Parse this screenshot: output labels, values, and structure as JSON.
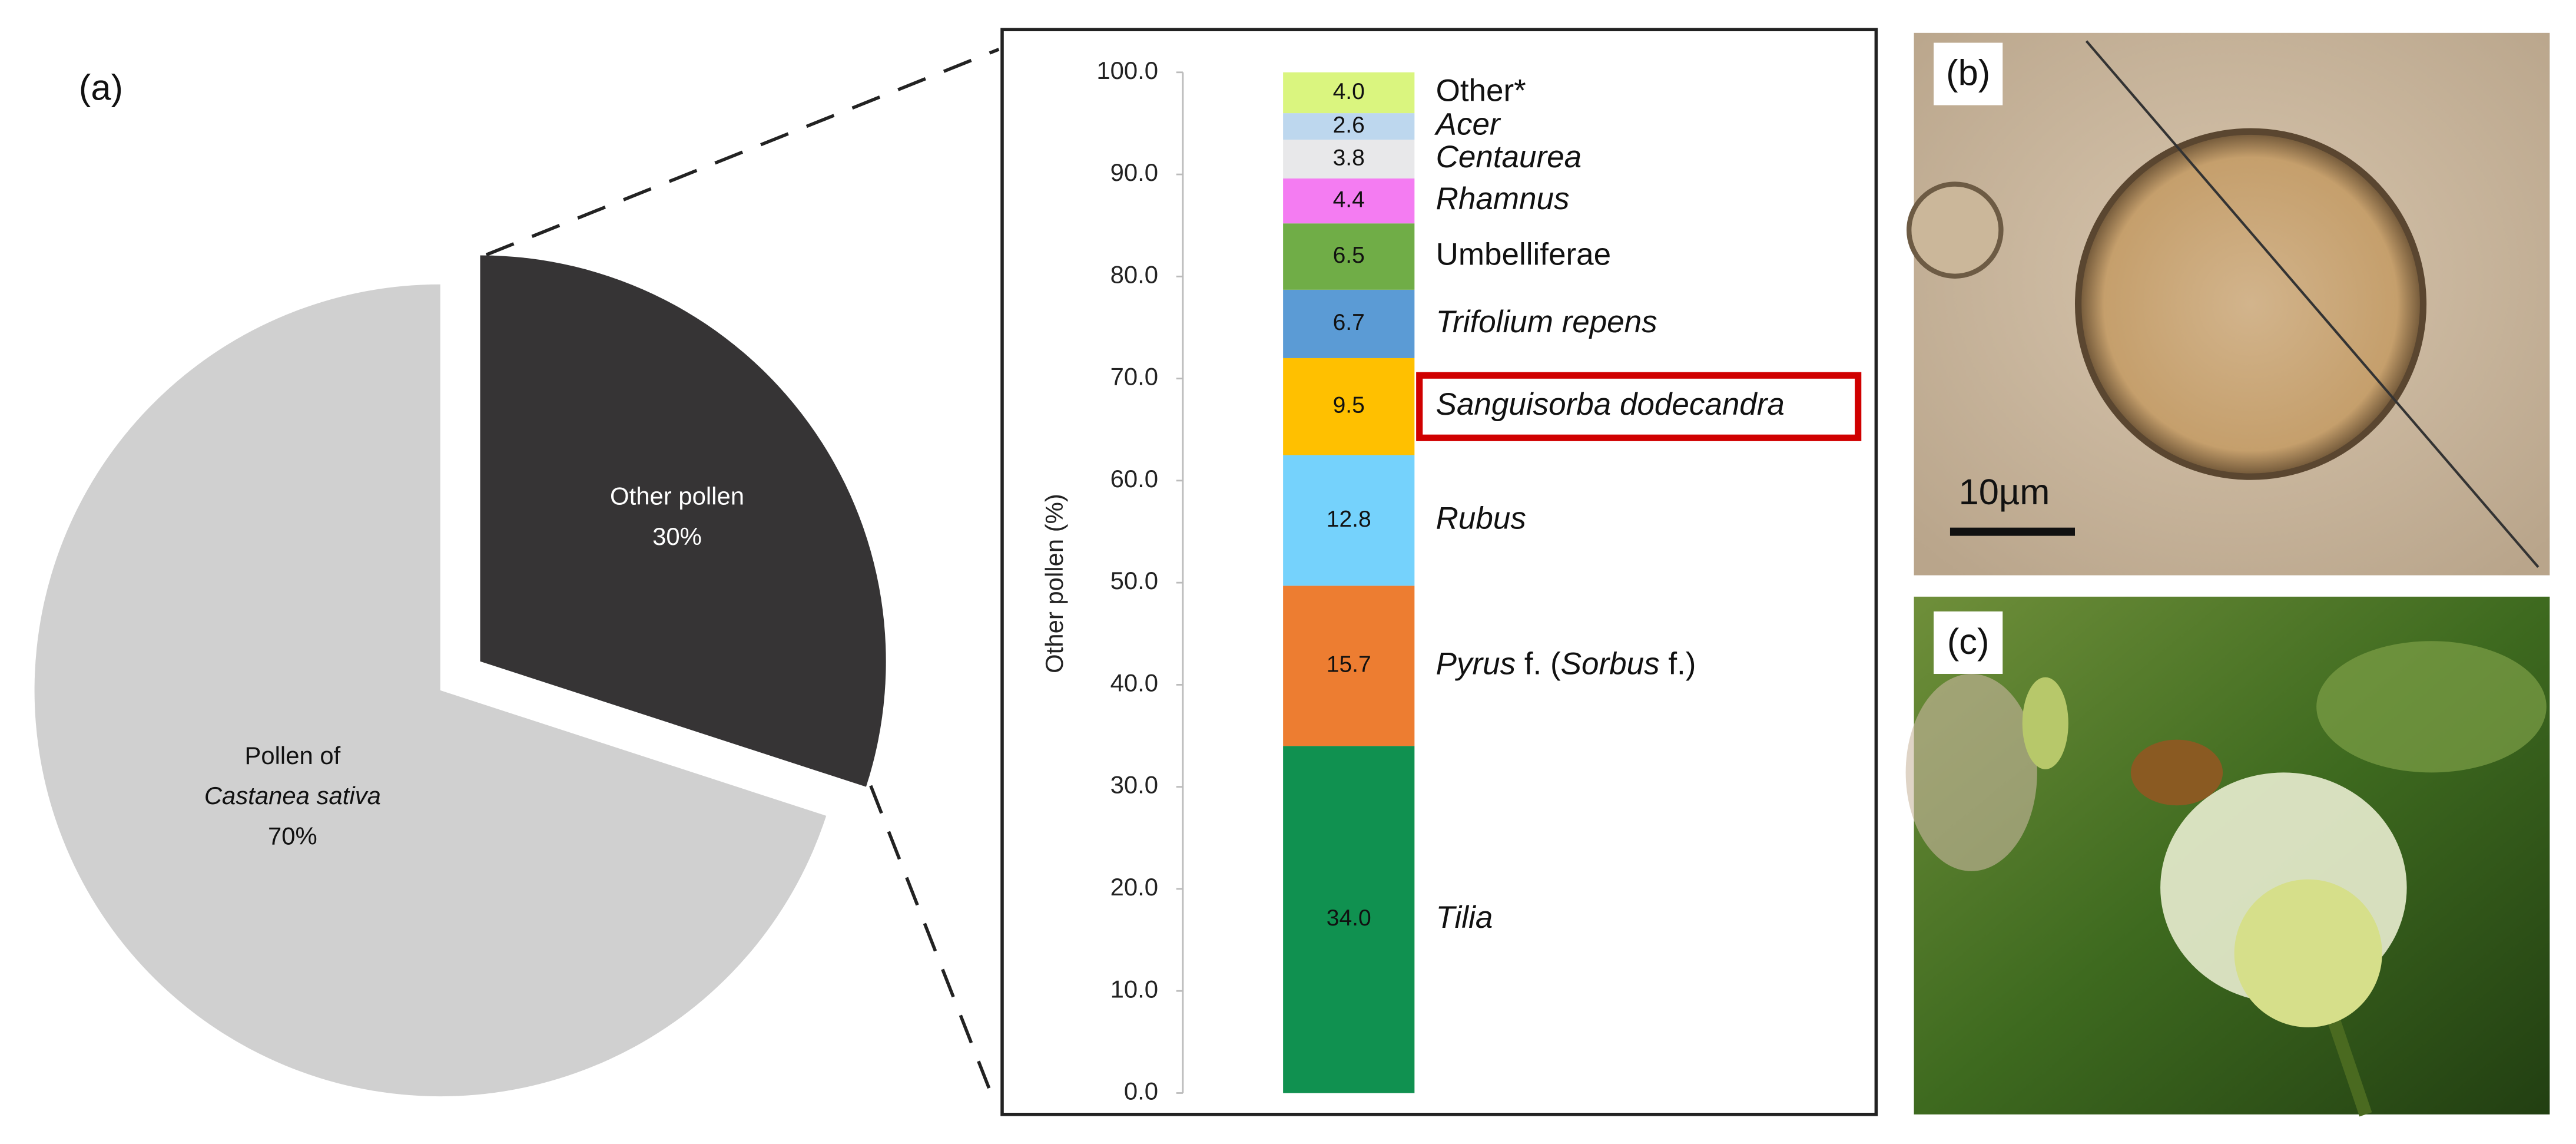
{
  "panel_label": "(a)",
  "chart_data": [
    {
      "type": "pie",
      "categories": [
        {
          "lines": [
            "Other pollen"
          ],
          "italic": [
            false
          ]
        },
        {
          "lines": [
            "Pollen of",
            "Castanea sativa"
          ],
          "italic": [
            false,
            true
          ]
        }
      ],
      "values": [
        30,
        70
      ],
      "value_labels": [
        "30%",
        "70%"
      ],
      "colors": [
        "#363435",
        "#d0d0d0"
      ],
      "label_colors": [
        "#ffffff",
        "#111111"
      ]
    },
    {
      "type": "stacked-bar",
      "ylabel": "Other pollen (%)",
      "ylim": [
        0,
        100
      ],
      "yticks": [
        {
          "value": 0,
          "label": "0.0"
        },
        {
          "value": 10,
          "label": "10.0"
        },
        {
          "value": 20,
          "label": "20.0"
        },
        {
          "value": 30,
          "label": "30.0"
        },
        {
          "value": 40,
          "label": "40.0"
        },
        {
          "value": 50,
          "label": "50.0"
        },
        {
          "value": 60,
          "label": "60.0"
        },
        {
          "value": 70,
          "label": "70.0"
        },
        {
          "value": 80,
          "label": "80.0"
        },
        {
          "value": 90,
          "label": "90.0"
        },
        {
          "value": 100,
          "label": "100.0"
        }
      ],
      "highlight_color": "#d00000",
      "series": [
        {
          "name": [
            {
              "text": "Tilia",
              "italic": true
            }
          ],
          "color": "#109150",
          "values": [
            34
          ],
          "value_labels": [
            "34.0"
          ]
        },
        {
          "name": [
            {
              "text": "Pyrus",
              "italic": true
            },
            {
              "text": " f. (",
              "italic": false
            },
            {
              "text": "Sorbus",
              "italic": true
            },
            {
              "text": " f.)",
              "italic": false
            }
          ],
          "color": "#ed7d31",
          "values": [
            15.7
          ],
          "value_labels": [
            "15.7"
          ]
        },
        {
          "name": [
            {
              "text": "Rubus",
              "italic": true
            }
          ],
          "color": "#75d2fc",
          "values": [
            12.8
          ],
          "value_labels": [
            "12.8"
          ]
        },
        {
          "name": [
            {
              "text": "Sanguisorba dodecandra",
              "italic": true
            }
          ],
          "color": "#ffc000",
          "values": [
            9.5
          ],
          "value_labels": [
            "9.5"
          ],
          "highlighted": true
        },
        {
          "name": [
            {
              "text": "Trifolium repens",
              "italic": true
            }
          ],
          "color": "#5b9bd5",
          "values": [
            6.7
          ],
          "value_labels": [
            "6.7"
          ]
        },
        {
          "name": [
            {
              "text": "Umbelliferae",
              "italic": false
            }
          ],
          "color": "#70ad47",
          "values": [
            6.5
          ],
          "value_labels": [
            "6.5"
          ]
        },
        {
          "name": [
            {
              "text": "Rhamnus",
              "italic": true
            }
          ],
          "color": "#f47cf2",
          "values": [
            4.4
          ],
          "value_labels": [
            "4.4"
          ]
        },
        {
          "name": [
            {
              "text": "Centaurea",
              "italic": true
            }
          ],
          "color": "#e8e8ea",
          "values": [
            3.8
          ],
          "value_labels": [
            "3.8"
          ]
        },
        {
          "name": [
            {
              "text": "Acer",
              "italic": true
            }
          ],
          "color": "#bdd7ee",
          "values": [
            2.6
          ],
          "value_labels": [
            "2.6"
          ]
        },
        {
          "name": [
            {
              "text": "Other*",
              "italic": false
            }
          ],
          "color": "#daf57f",
          "values": [
            4
          ],
          "value_labels": [
            "4.0"
          ]
        }
      ]
    }
  ],
  "photos": [
    {
      "label": "(b)",
      "scale_bar": "10µm"
    },
    {
      "label": "(c)"
    }
  ]
}
